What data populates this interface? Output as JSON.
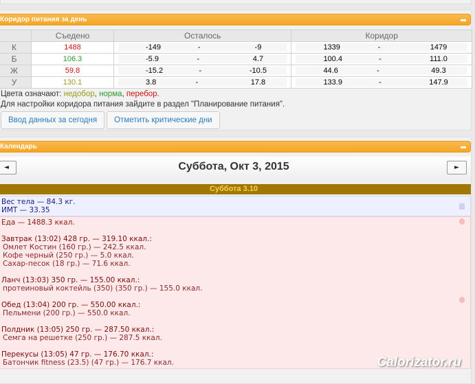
{
  "corridor": {
    "title": "Коридор питания за день",
    "headers": [
      "Съедено",
      "Осталось",
      "Коридор"
    ],
    "rows": [
      {
        "label": "К",
        "eaten": "1488",
        "eaten_color": "#cc1111",
        "left_from": "-149",
        "left_to": "-9",
        "cor_from": "1339",
        "cor_to": "1479"
      },
      {
        "label": "Б",
        "eaten": "106.3",
        "eaten_color": "#2a9a2a",
        "left_from": "-5.9",
        "left_to": "4.7",
        "cor_from": "100.4",
        "cor_to": "111.0"
      },
      {
        "label": "Ж",
        "eaten": "59.8",
        "eaten_color": "#cc1111",
        "left_from": "-15.2",
        "left_to": "-10.5",
        "cor_from": "44.6",
        "cor_to": "49.3"
      },
      {
        "label": "У",
        "eaten": "130.1",
        "eaten_color": "#9a9a1a",
        "left_from": "3.8",
        "left_to": "17.8",
        "cor_from": "133.9",
        "cor_to": "147.9"
      }
    ],
    "dash": "-",
    "legend_prefix": "Цвета означают: ",
    "legend_under": "недобор",
    "legend_norm": "норма",
    "legend_over": "перебор",
    "sep1": ", ",
    "sep2": ", ",
    "dot": ".",
    "hint": "Для настройки коридора питания зайдите в раздел \"Планирование питания\".",
    "btn_today": "Ввод данных за сегодня",
    "btn_critical": "Отметить критические дни"
  },
  "calendar": {
    "title": "Календарь",
    "prev": "◄",
    "next": "►",
    "date": "Суббота, Окт 3, 2015",
    "day": "Суббота 3.10",
    "weight": "Вес тела — 84.3 кг.",
    "bmi": "ИМТ — 33.35",
    "food_total": "Еда — 1488.3 ккал.",
    "meals": [
      {
        "head": "Завтрак (13:02) 428 гр. — 319.10 ккал.:",
        "items": [
          "Омлет Костин (160 гр.) — 242.5 ккал.",
          "Кофе черный (250 гр.) — 5.0 ккал.",
          "Сахар-песок (18 гр.) — 71.6 ккал."
        ]
      },
      {
        "head": "Ланч (13:03) 350 гр. — 155.00 ккал.:",
        "items": [
          "протеиновый коктейль (350) (350 гр.) — 155.0 ккал."
        ]
      },
      {
        "head": "Обед (13:04) 200 гр. — 550.00 ккал.:",
        "items": [
          "Пельмени (200 гр.) — 550.0 ккал."
        ]
      },
      {
        "head": "Полдник (13:05) 250 гр. — 287.50 ккал.:",
        "items": [
          "Семга на решетке (250 гр.) — 287.5 ккал."
        ]
      },
      {
        "head": "Перекусы (13:05) 47 гр. — 176.70 ккал.:",
        "items": [
          "Батончик fitness (23.5) (47 гр.) — 176.7 ккал."
        ]
      }
    ]
  },
  "watermark": "Calorizator.ru"
}
